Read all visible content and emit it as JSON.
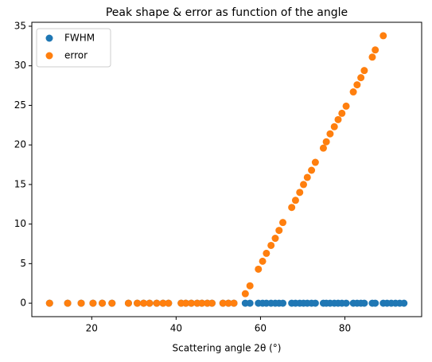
{
  "chart_data": {
    "type": "scatter",
    "title": "Peak shape & error as function of the angle",
    "x_label": "Scattering angle 2θ (°)",
    "xlim": [
      5.8,
      98.2
    ],
    "ylim": [
      -1.7,
      35.5
    ],
    "xticks": [
      20,
      40,
      60,
      80
    ],
    "yticks": [
      0,
      5,
      10,
      15,
      20,
      25,
      30,
      35
    ],
    "legend_position": "upper-left",
    "series": [
      {
        "name": "FWHM",
        "color": "#1f77b4",
        "x": [
          10,
          14.3,
          17.5,
          20.3,
          22.5,
          24.8,
          28.7,
          30.8,
          32.3,
          33.7,
          35.4,
          36.9,
          38.2,
          41.2,
          42.3,
          43.6,
          45,
          46.1,
          47.4,
          48.5,
          51.1,
          52.4,
          53.7,
          56.4,
          57.5,
          59.5,
          60.5,
          61.4,
          62.5,
          63.5,
          64.4,
          65.3,
          67.4,
          68.3,
          69.3,
          70.2,
          71.1,
          72.1,
          73,
          74.9,
          75.6,
          76.5,
          77.5,
          78.4,
          79.3,
          80.3,
          82,
          82.9,
          83.8,
          84.6,
          86.5,
          87.2,
          89.1,
          90,
          91,
          92,
          93,
          94
        ],
        "values": [
          0,
          0,
          0,
          0,
          0,
          0,
          0,
          0,
          0,
          0,
          0,
          0,
          0,
          0,
          0,
          0,
          0,
          0,
          0,
          0,
          0,
          0,
          0,
          0,
          0,
          0,
          0,
          0,
          0,
          0,
          0,
          0,
          0,
          0,
          0,
          0,
          0,
          0,
          0,
          0,
          0,
          0,
          0,
          0,
          0,
          0,
          0,
          0,
          0,
          0,
          0,
          0,
          0,
          0,
          0,
          0,
          0,
          0
        ]
      },
      {
        "name": "error",
        "color": "#ff7f0e",
        "x": [
          10,
          14.3,
          17.5,
          20.3,
          22.5,
          24.8,
          28.7,
          30.8,
          32.3,
          33.7,
          35.4,
          36.9,
          38.2,
          41.2,
          42.3,
          43.6,
          45,
          46.1,
          47.4,
          48.5,
          51.1,
          52.4,
          53.7,
          56.4,
          57.5,
          59.5,
          60.5,
          61.4,
          62.5,
          63.5,
          64.4,
          65.3,
          67.4,
          68.3,
          69.3,
          70.2,
          71.1,
          72.1,
          73,
          74.9,
          75.6,
          76.5,
          77.5,
          78.4,
          79.3,
          80.3,
          82,
          82.9,
          83.8,
          84.6,
          86.5,
          87.2,
          89.1
        ],
        "values": [
          0,
          0,
          0,
          0,
          0,
          0,
          0,
          0,
          0,
          0,
          0,
          0,
          0,
          0,
          0,
          0,
          0,
          0,
          0,
          0,
          0,
          0,
          0,
          1.2,
          2.2,
          4.3,
          5.3,
          6.3,
          7.3,
          8.2,
          9.2,
          10.2,
          12.1,
          13.0,
          14.0,
          15.0,
          15.9,
          16.8,
          17.8,
          19.6,
          20.4,
          21.4,
          22.3,
          23.2,
          24.0,
          24.9,
          26.7,
          27.6,
          28.5,
          29.4,
          31.1,
          32.0,
          33.8
        ]
      }
    ]
  }
}
